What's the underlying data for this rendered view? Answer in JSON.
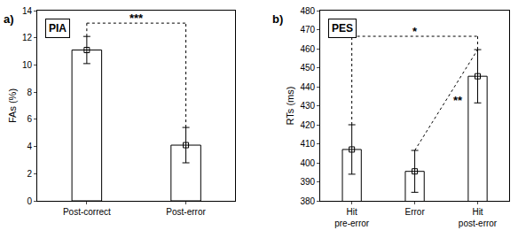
{
  "chart_data": [
    {
      "type": "bar",
      "panel": "a)",
      "title": "PIA",
      "y_label": "FAs (%)",
      "categories": [
        "Post-correct",
        "Post-error"
      ],
      "values": [
        11.1,
        4.1
      ],
      "errors": [
        1.0,
        1.3
      ],
      "color": "#ffffff",
      "marker": "square",
      "grid": false,
      "ylim": [
        0,
        14
      ],
      "yticks": [
        0,
        2,
        4,
        6,
        8,
        10,
        12,
        14
      ],
      "significance": [
        {
          "between": [
            "Post-correct",
            "Post-error"
          ],
          "label": "***",
          "kind": "bracket",
          "line_style": "dotted"
        }
      ]
    },
    {
      "type": "bar",
      "panel": "b)",
      "title": "PES",
      "y_label": "RTs (ms)",
      "categories": [
        "Hit\npre-error",
        "Error",
        "Hit\npost-error"
      ],
      "values": [
        407,
        395.5,
        445.5
      ],
      "errors": [
        13,
        11,
        14
      ],
      "color": "#ffffff",
      "marker": "square",
      "grid": false,
      "ylim": [
        380,
        480
      ],
      "yticks": [
        380,
        390,
        400,
        410,
        420,
        430,
        440,
        450,
        460,
        470,
        480
      ],
      "significance": [
        {
          "between": [
            "Hit\npre-error",
            "Hit\npost-error"
          ],
          "label": "*",
          "kind": "bracket",
          "line_style": "dotted"
        },
        {
          "between": [
            "Error",
            "Hit\npost-error"
          ],
          "label": "**",
          "kind": "diagonal",
          "line_style": "dotted"
        }
      ]
    }
  ]
}
